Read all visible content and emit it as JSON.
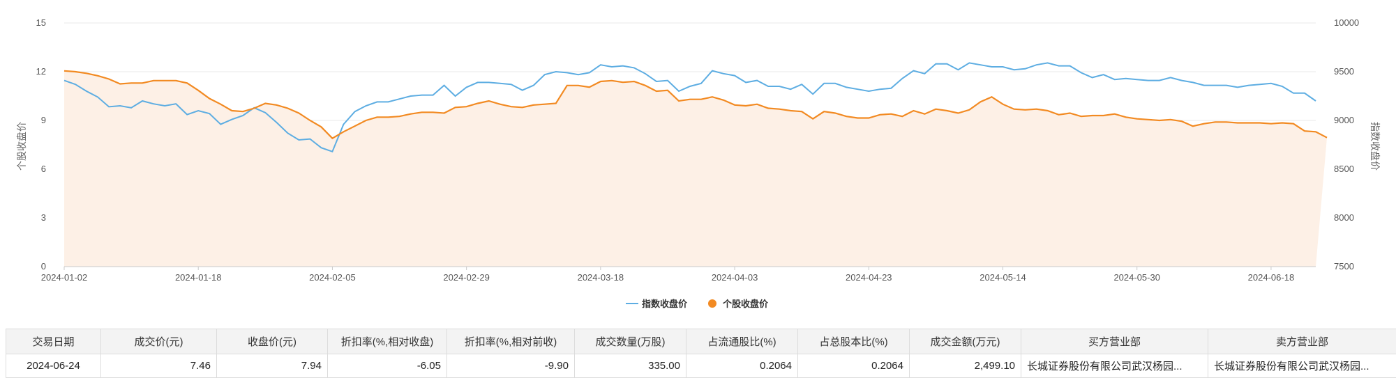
{
  "colors": {
    "index_line": "#5dade2",
    "stock_line": "#f28a22",
    "stock_area": "#fdf0e6",
    "grid": "#e8e8e8",
    "axis": "#c9c9c9"
  },
  "chart_data": {
    "type": "line",
    "ylabel_left": "个股收盘价",
    "ylabel_right": "指数收盘价",
    "ylim_left": [
      0,
      15
    ],
    "ylim_right": [
      7500,
      10000
    ],
    "yticks_left": [
      "0",
      "3",
      "6",
      "9",
      "12",
      "15"
    ],
    "yticks_right": [
      "7500",
      "8000",
      "8500",
      "9000",
      "9500",
      "10000"
    ],
    "xtick_labels": [
      "2024-01-02",
      "2024-01-18",
      "2024-02-05",
      "2024-02-29",
      "2024-03-18",
      "2024-04-03",
      "2024-04-23",
      "2024-05-14",
      "2024-05-30",
      "2024-06-18"
    ],
    "xtick_index": [
      0,
      12,
      24,
      36,
      48,
      60,
      72,
      84,
      96,
      108
    ],
    "grid": true,
    "legend": "bottom-center",
    "series": [
      {
        "name": "指数收盘价",
        "axis": "right",
        "values": [
          9410,
          9370,
          9300,
          9240,
          9140,
          9150,
          9130,
          9200,
          9170,
          9150,
          9170,
          9060,
          9100,
          9070,
          8960,
          9010,
          9050,
          9130,
          9080,
          8980,
          8870,
          8800,
          8810,
          8720,
          8680,
          8960,
          9090,
          9150,
          9190,
          9190,
          9220,
          9250,
          9260,
          9260,
          9360,
          9250,
          9340,
          9390,
          9390,
          9380,
          9370,
          9310,
          9360,
          9470,
          9500,
          9490,
          9470,
          9490,
          9570,
          9550,
          9560,
          9540,
          9480,
          9400,
          9410,
          9300,
          9350,
          9380,
          9510,
          9480,
          9460,
          9390,
          9410,
          9350,
          9350,
          9320,
          9370,
          9270,
          9380,
          9380,
          9340,
          9320,
          9300,
          9320,
          9330,
          9430,
          9510,
          9480,
          9580,
          9580,
          9520,
          9590,
          9570,
          9550,
          9550,
          9520,
          9530,
          9570,
          9590,
          9560,
          9560,
          9490,
          9440,
          9470,
          9420,
          9430,
          9420,
          9410,
          9410,
          9440,
          9410,
          9390,
          9360,
          9360,
          9360,
          9340,
          9360,
          9370,
          9380,
          9350,
          9280,
          9280,
          9200
        ]
      },
      {
        "name": "个股收盘价",
        "axis": "left",
        "values": [
          12.05,
          12.0,
          11.9,
          11.75,
          11.55,
          11.25,
          11.3,
          11.3,
          11.45,
          11.45,
          11.45,
          11.3,
          10.85,
          10.35,
          10.0,
          9.6,
          9.55,
          9.75,
          10.05,
          9.95,
          9.75,
          9.45,
          9.0,
          8.6,
          7.9,
          8.3,
          8.65,
          9.0,
          9.2,
          9.2,
          9.25,
          9.4,
          9.5,
          9.5,
          9.45,
          9.8,
          9.85,
          10.05,
          10.2,
          10.0,
          9.85,
          9.8,
          9.95,
          10.0,
          10.05,
          11.15,
          11.15,
          11.05,
          11.4,
          11.45,
          11.35,
          11.4,
          11.15,
          10.8,
          10.85,
          10.2,
          10.3,
          10.3,
          10.45,
          10.25,
          9.95,
          9.9,
          10.0,
          9.75,
          9.7,
          9.6,
          9.55,
          9.1,
          9.55,
          9.45,
          9.25,
          9.15,
          9.15,
          9.35,
          9.4,
          9.25,
          9.6,
          9.4,
          9.7,
          9.6,
          9.45,
          9.65,
          10.15,
          10.45,
          10.0,
          9.7,
          9.65,
          9.7,
          9.6,
          9.35,
          9.45,
          9.25,
          9.3,
          9.3,
          9.4,
          9.2,
          9.1,
          9.05,
          9.0,
          9.05,
          8.95,
          8.65,
          8.8,
          8.9,
          8.9,
          8.85,
          8.85,
          8.85,
          8.8,
          8.85,
          8.8,
          8.35,
          8.3,
          7.94
        ]
      }
    ]
  },
  "table": {
    "headers": [
      "交易日期",
      "成交价(元)",
      "收盘价(元)",
      "折扣率(%,相对收盘)",
      "折扣率(%,相对前收)",
      "成交数量(万股)",
      "占流通股比(%)",
      "占总股本比(%)",
      "成交金额(万元)",
      "买方营业部",
      "卖方营业部"
    ],
    "rows": [
      [
        "2024-06-24",
        "7.46",
        "7.94",
        "-6.05",
        "-9.90",
        "335.00",
        "0.2064",
        "0.2064",
        "2,499.10",
        "长城证券股份有限公司武汉杨园...",
        "长城证券股份有限公司武汉杨园..."
      ]
    ]
  }
}
